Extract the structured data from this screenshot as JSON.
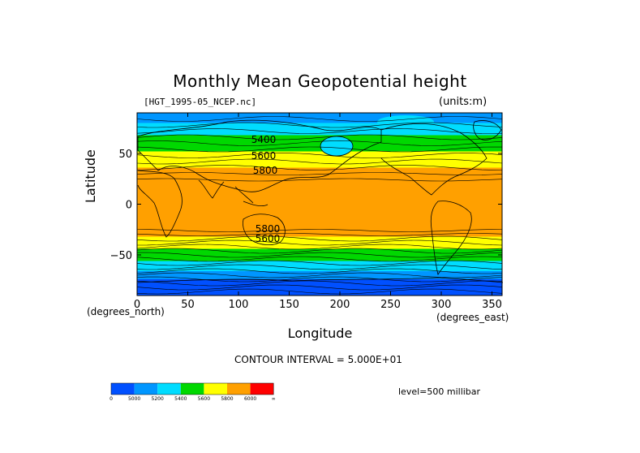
{
  "chart_data": {
    "type": "heatmap",
    "title": "Monthly Mean Geopotential height",
    "subtitle_left": "[HGT_1995-05_NCEP.nc]",
    "units": "(units:m)",
    "xlabel": "Longitude",
    "ylabel": "Latitude",
    "x_unit_note": "(degrees_east)",
    "y_unit_note": "(degrees_north)",
    "xlim": [
      0,
      360
    ],
    "ylim": [
      -90,
      90
    ],
    "xticks": [
      0,
      50,
      100,
      150,
      200,
      250,
      300,
      350
    ],
    "yticks": [
      50,
      0,
      -50
    ],
    "contour_interval_text": "CONTOUR INTERVAL = 5.000E+01",
    "level_text": "level=500 millibar",
    "contour_labels": [
      "5400",
      "5600",
      "5800",
      "5800",
      "5600"
    ],
    "colorbar": {
      "tick_labels": [
        "0",
        "5000",
        "5200",
        "5400",
        "5600",
        "5800",
        "6000",
        "∞"
      ],
      "colors": [
        "#0050ff",
        "#0096ff",
        "#00dcff",
        "#00d800",
        "#ffff00",
        "#ffa000",
        "#ff0000"
      ]
    },
    "zonal_bands": [
      {
        "from": 90,
        "to": 80,
        "color": "#0096ff"
      },
      {
        "from": 80,
        "to": 68,
        "color": "#00dcff"
      },
      {
        "from": 68,
        "to": 52,
        "color": "#00d800"
      },
      {
        "from": 52,
        "to": 36,
        "color": "#ffff00"
      },
      {
        "from": 36,
        "to": -32,
        "color": "#ffa000"
      },
      {
        "from": -32,
        "to": -44,
        "color": "#ffff00"
      },
      {
        "from": -44,
        "to": -56,
        "color": "#00d800"
      },
      {
        "from": -56,
        "to": -66,
        "color": "#00dcff"
      },
      {
        "from": -66,
        "to": -74,
        "color": "#0096ff"
      },
      {
        "from": -74,
        "to": -90,
        "color": "#0050ff"
      }
    ]
  }
}
